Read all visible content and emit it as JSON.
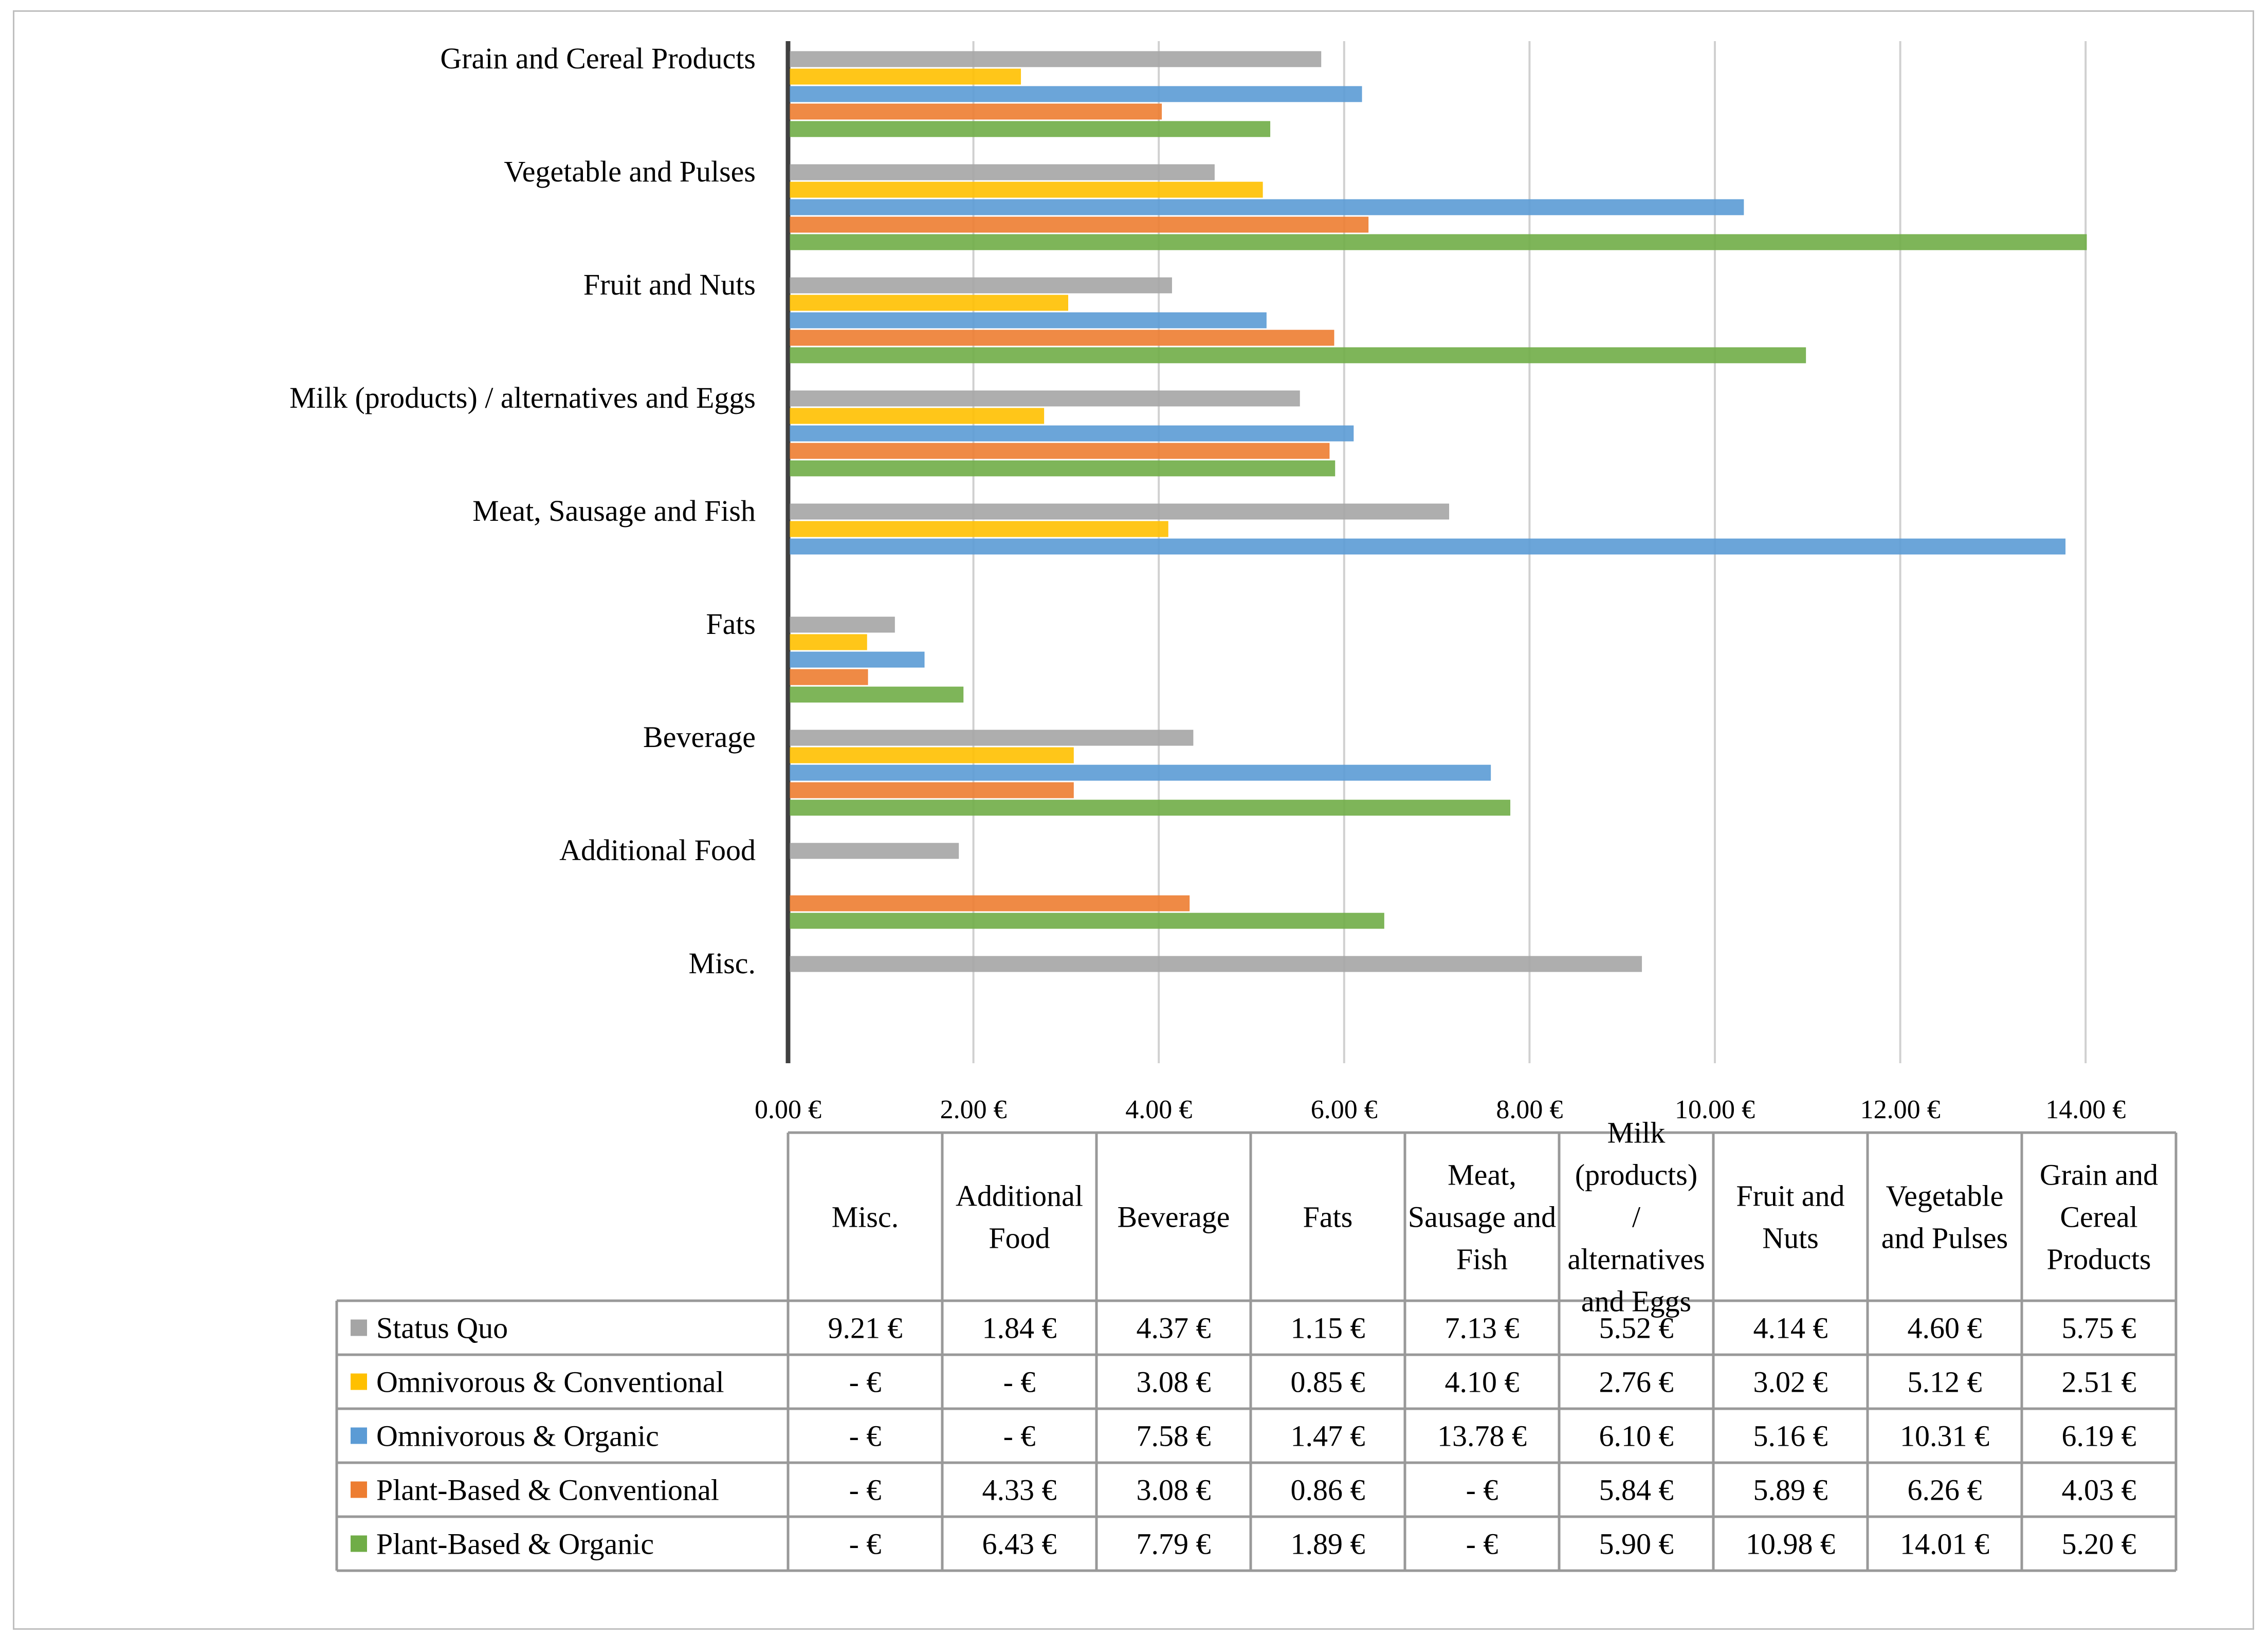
{
  "chart_data": {
    "type": "bar",
    "orientation": "horizontal",
    "title": "",
    "xlabel": "",
    "ylabel": "",
    "xlim": [
      0,
      14
    ],
    "grid": true,
    "x_ticks": [
      "0.00 €",
      "2.00 €",
      "4.00 €",
      "6.00 €",
      "8.00 €",
      "10.00 €",
      "12.00 €",
      "14.00 €"
    ],
    "categories_top_to_bottom": [
      "Grain and Cereal Products",
      "Vegetable and Pulses",
      "Fruit and Nuts",
      "Milk (products) / alternatives and Eggs",
      "Meat, Sausage and Fish",
      "Fats",
      "Beverage",
      "Additional Food",
      "Misc."
    ],
    "series": [
      {
        "name": "Status Quo",
        "color": "#a5a5a5",
        "values": [
          5.75,
          4.6,
          4.14,
          5.52,
          7.13,
          1.15,
          4.37,
          1.84,
          9.21
        ]
      },
      {
        "name": "Omnivorous & Conventional",
        "color": "#ffc000",
        "values": [
          2.51,
          5.12,
          3.02,
          2.76,
          4.1,
          0.85,
          3.08,
          null,
          null
        ]
      },
      {
        "name": "Omnivorous & Organic",
        "color": "#5b9bd5",
        "values": [
          6.19,
          10.31,
          5.16,
          6.1,
          13.78,
          1.47,
          7.58,
          null,
          null
        ]
      },
      {
        "name": "Plant-Based & Conventional",
        "color": "#ed7d31",
        "values": [
          4.03,
          6.26,
          5.89,
          5.84,
          null,
          0.86,
          3.08,
          4.33,
          null
        ]
      },
      {
        "name": "Plant-Based & Organic",
        "color": "#70ad47",
        "values": [
          5.2,
          14.01,
          10.98,
          5.9,
          null,
          1.89,
          7.79,
          6.43,
          null
        ]
      }
    ],
    "table": {
      "headers": [
        "Misc.",
        "Additional Food",
        "Beverage",
        "Fats",
        "Meat, Sausage and Fish",
        "Milk (products) / alternatives and Eggs",
        "Fruit and Nuts",
        "Vegetable and Pulses",
        "Grain and Cereal Products"
      ],
      "rows": [
        {
          "label": "Status Quo",
          "cells": [
            "9.21 €",
            "1.84 €",
            "4.37 €",
            "1.15 €",
            "7.13 €",
            "5.52 €",
            "4.14 €",
            "4.60 €",
            "5.75 €"
          ]
        },
        {
          "label": "Omnivorous & Conventional",
          "cells": [
            "-   €",
            "-   €",
            "3.08 €",
            "0.85 €",
            "4.10 €",
            "2.76 €",
            "3.02 €",
            "5.12 €",
            "2.51 €"
          ]
        },
        {
          "label": "Omnivorous & Organic",
          "cells": [
            "-   €",
            "-   €",
            "7.58 €",
            "1.47 €",
            "13.78 €",
            "6.10 €",
            "5.16 €",
            "10.31 €",
            "6.19 €"
          ]
        },
        {
          "label": "Plant-Based & Conventional",
          "cells": [
            "-   €",
            "4.33 €",
            "3.08 €",
            "0.86 €",
            "-   €",
            "5.84 €",
            "5.89 €",
            "6.26 €",
            "4.03 €"
          ]
        },
        {
          "label": "Plant-Based & Organic",
          "cells": [
            "-   €",
            "6.43 €",
            "7.79 €",
            "1.89 €",
            "-   €",
            "5.90 €",
            "10.98 €",
            "14.01 €",
            "5.20 €"
          ]
        }
      ]
    }
  }
}
